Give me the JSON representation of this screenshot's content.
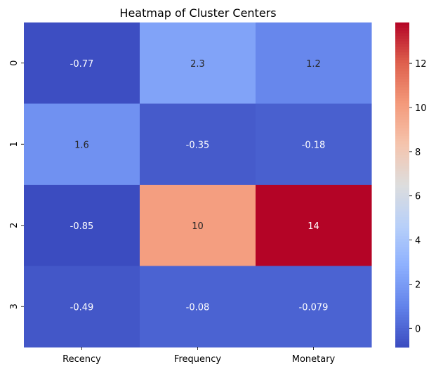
{
  "chart_data": {
    "type": "heatmap",
    "title": "Heatmap of Cluster Centers",
    "xlabel": "",
    "ylabel": "",
    "x_categories": [
      "Recency",
      "Frequency",
      "Monetary"
    ],
    "y_categories": [
      "0",
      "1",
      "2",
      "3"
    ],
    "values": [
      [
        -0.77,
        2.3,
        1.2
      ],
      [
        1.6,
        -0.35,
        -0.18
      ],
      [
        -0.85,
        10,
        14
      ],
      [
        -0.49,
        -0.08,
        -0.079
      ]
    ],
    "annotations": [
      [
        "-0.77",
        "2.3",
        "1.2"
      ],
      [
        "1.6",
        "-0.35",
        "-0.18"
      ],
      [
        "-0.85",
        "10",
        "14"
      ],
      [
        "-0.49",
        "-0.08",
        "-0.079"
      ]
    ],
    "colormap": "coolwarm",
    "vmin": -0.85,
    "vmax": 13.85,
    "colorbar_ticks": [
      0,
      2,
      4,
      6,
      8,
      10,
      12
    ],
    "colorbar_position": "right"
  }
}
